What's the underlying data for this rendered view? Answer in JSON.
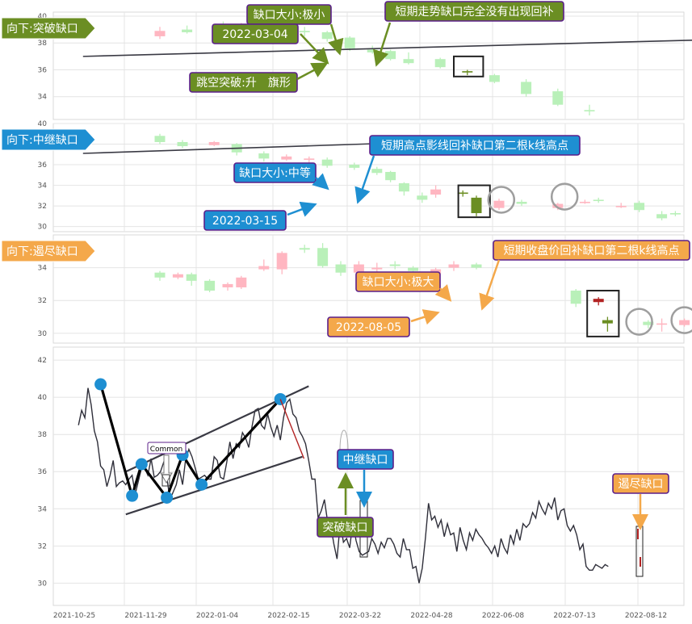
{
  "colors": {
    "up_fill": "#ffb6c1",
    "up_dark": "#b22222",
    "down_fill": "#b9f0b9",
    "down_dark": "#6b8e23",
    "green_box": "#6b8e23",
    "blue_box": "#1e8fd2",
    "orange_box": "#f4a84a",
    "box_border": "#5b1f8a",
    "price_line": "#2f2f3a",
    "pivot": "#1e8fd2"
  },
  "chart_data": [
    {
      "type": "candlestick",
      "panel": "breakaway",
      "tag": "向下:突破缺口",
      "yticks": [
        34,
        36,
        38,
        40
      ],
      "ylim": [
        32.3,
        40.3
      ],
      "candles": [
        {
          "x": 20,
          "o": 38.5,
          "c": 38.9,
          "h": 39.2,
          "l": 38.3
        },
        {
          "x": 26,
          "o": 39.0,
          "c": 38.8,
          "h": 39.3,
          "l": 38.7
        },
        {
          "x": 34,
          "o": 39.3,
          "c": 39.1,
          "h": 39.6,
          "l": 38.9
        },
        {
          "x": 38,
          "o": 39.1,
          "c": 39.4,
          "h": 39.5,
          "l": 39.0
        },
        {
          "x": 42,
          "o": 39.3,
          "c": 38.6,
          "h": 39.4,
          "l": 38.5
        },
        {
          "x": 47,
          "o": 38.5,
          "c": 39.0,
          "h": 39.2,
          "l": 38.4
        },
        {
          "x": 52,
          "o": 38.9,
          "c": 38.8,
          "h": 39.2,
          "l": 38.5
        },
        {
          "x": 57,
          "o": 38.8,
          "c": 38.3,
          "h": 38.9,
          "l": 38.1
        },
        {
          "x": 62,
          "o": 38.4,
          "c": 37.6,
          "h": 38.5,
          "l": 37.4
        },
        {
          "x": 67,
          "o": 37.5,
          "c": 37.3,
          "h": 37.8,
          "l": 37.2
        },
        {
          "x": 71,
          "o": 37.4,
          "c": 36.8,
          "h": 37.5,
          "l": 36.7
        },
        {
          "x": 75,
          "o": 36.8,
          "c": 36.5,
          "h": 37.3,
          "l": 36.4
        },
        {
          "x": 82,
          "o": 36.8,
          "c": 36.2,
          "h": 36.9,
          "l": 36.1
        },
        {
          "x": 88,
          "o": 35.9,
          "c": 35.8,
          "h": 36.0,
          "l": 35.6
        },
        {
          "x": 94,
          "o": 35.6,
          "c": 35.1,
          "h": 35.7,
          "l": 35.0
        },
        {
          "x": 101,
          "o": 35.1,
          "c": 34.2,
          "h": 35.3,
          "l": 34.0
        },
        {
          "x": 108,
          "o": 34.4,
          "c": 33.4,
          "h": 34.6,
          "l": 33.3
        },
        {
          "x": 115,
          "o": 33.0,
          "c": 32.9,
          "h": 33.4,
          "l": 32.6
        }
      ],
      "gap_box": {
        "x0": 85,
        "x1": 91.5,
        "y0": 35.5,
        "y1": 37.0
      },
      "trendline": {
        "x0": 3,
        "y0": 37.0,
        "x1": 148,
        "y1": 38.3
      },
      "annotations": [
        "缺口大小:极小",
        "短期走势缺口完全没有出现回补",
        "2022-03-04",
        "跳空突破:升　旗形"
      ]
    },
    {
      "type": "candlestick",
      "panel": "runaway",
      "tag": "向下:中继缺口",
      "yticks": [
        30,
        32,
        34,
        36,
        38,
        40
      ],
      "ylim": [
        29.5,
        40.0
      ],
      "candles": [
        {
          "x": 20,
          "o": 38.8,
          "c": 38.2,
          "h": 39.0,
          "l": 38.0
        },
        {
          "x": 25,
          "o": 38.2,
          "c": 37.8,
          "h": 38.4,
          "l": 37.6
        },
        {
          "x": 32,
          "o": 37.9,
          "c": 38.2,
          "h": 38.3,
          "l": 37.8
        },
        {
          "x": 37,
          "o": 38.0,
          "c": 37.2,
          "h": 38.1,
          "l": 36.9
        },
        {
          "x": 43,
          "o": 37.1,
          "c": 36.6,
          "h": 37.3,
          "l": 36.3
        },
        {
          "x": 48,
          "o": 36.5,
          "c": 36.8,
          "h": 37.0,
          "l": 36.4
        },
        {
          "x": 53,
          "o": 36.6,
          "c": 36.6,
          "h": 36.8,
          "l": 36.2
        },
        {
          "x": 57,
          "o": 36.5,
          "c": 35.9,
          "h": 36.7,
          "l": 35.7
        },
        {
          "x": 63,
          "o": 36.0,
          "c": 35.7,
          "h": 36.2,
          "l": 35.5
        },
        {
          "x": 68,
          "o": 35.6,
          "c": 35.2,
          "h": 35.8,
          "l": 35.0
        },
        {
          "x": 71,
          "o": 35.3,
          "c": 34.5,
          "h": 35.4,
          "l": 34.3
        },
        {
          "x": 74,
          "o": 34.2,
          "c": 33.4,
          "h": 34.3,
          "l": 33.0
        },
        {
          "x": 78,
          "o": 33.0,
          "c": 32.6,
          "h": 33.3,
          "l": 32.3
        },
        {
          "x": 81,
          "o": 33.1,
          "c": 33.6,
          "h": 34.0,
          "l": 32.8
        },
        {
          "x": 87,
          "o": 33.3,
          "c": 33.2,
          "h": 33.5,
          "l": 32.9
        },
        {
          "x": 90,
          "o": 32.8,
          "c": 31.3,
          "h": 33.0,
          "l": 31.0
        },
        {
          "x": 95,
          "o": 31.8,
          "c": 32.5,
          "h": 32.7,
          "l": 31.6
        },
        {
          "x": 100,
          "o": 32.4,
          "c": 32.2,
          "h": 32.6,
          "l": 32.0
        },
        {
          "x": 108,
          "o": 31.8,
          "c": 32.2,
          "h": 32.3,
          "l": 31.6
        },
        {
          "x": 114,
          "o": 32.4,
          "c": 32.4,
          "h": 32.6,
          "l": 32.2
        },
        {
          "x": 117,
          "o": 32.6,
          "c": 32.5,
          "h": 32.8,
          "l": 32.3
        },
        {
          "x": 122,
          "o": 32.0,
          "c": 32.0,
          "h": 32.3,
          "l": 31.8
        },
        {
          "x": 126,
          "o": 32.3,
          "c": 31.6,
          "h": 32.5,
          "l": 31.4
        },
        {
          "x": 131,
          "o": 31.2,
          "c": 30.8,
          "h": 31.5,
          "l": 30.6
        },
        {
          "x": 134,
          "o": 31.3,
          "c": 31.2,
          "h": 31.5,
          "l": 31.0
        },
        {
          "x": 139,
          "o": 31.4,
          "c": 31.8,
          "h": 32.0,
          "l": 31.3
        },
        {
          "x": 142,
          "o": 31.9,
          "c": 32.3,
          "h": 32.5,
          "l": 31.8
        },
        {
          "x": 146,
          "o": 32.1,
          "c": 32.9,
          "h": 33.0,
          "l": 31.8
        }
      ],
      "gap_box": {
        "x0": 86,
        "x1": 93,
        "y0": 30.9,
        "y1": 34.0
      },
      "circles": [
        {
          "x": 95.5,
          "y": 32.6
        },
        {
          "x": 109.5,
          "y": 32.9
        }
      ],
      "trendline": {
        "x0": 3,
        "y0": 37.1,
        "x1": 92,
        "y1": 38.4
      },
      "annotations": [
        "短期高点影线回补缺口第二根k线高点",
        "缺口大小:中等",
        "2022-03-15"
      ]
    },
    {
      "type": "candlestick",
      "panel": "exhaustion",
      "tag": "向下:遏尽缺口",
      "yticks": [
        30,
        32,
        34
      ],
      "ylim": [
        29.4,
        36.0
      ],
      "candles": [
        {
          "x": 20,
          "o": 33.7,
          "c": 33.4,
          "h": 33.8,
          "l": 33.2
        },
        {
          "x": 24,
          "o": 33.4,
          "c": 33.6,
          "h": 33.7,
          "l": 33.3
        },
        {
          "x": 27,
          "o": 33.6,
          "c": 33.2,
          "h": 33.7,
          "l": 32.9
        },
        {
          "x": 31,
          "o": 33.2,
          "c": 32.6,
          "h": 33.3,
          "l": 32.5
        },
        {
          "x": 35,
          "o": 32.8,
          "c": 33.0,
          "h": 33.1,
          "l": 32.6
        },
        {
          "x": 38,
          "o": 32.8,
          "c": 33.4,
          "h": 33.5,
          "l": 32.7
        },
        {
          "x": 43,
          "o": 33.9,
          "c": 34.1,
          "h": 34.5,
          "l": 33.8
        },
        {
          "x": 47,
          "o": 33.9,
          "c": 34.9,
          "h": 35.0,
          "l": 33.6
        },
        {
          "x": 52,
          "o": 35.2,
          "c": 35.1,
          "h": 35.4,
          "l": 34.9
        },
        {
          "x": 56,
          "o": 35.2,
          "c": 34.1,
          "h": 35.5,
          "l": 34.0
        },
        {
          "x": 60,
          "o": 34.2,
          "c": 33.7,
          "h": 34.4,
          "l": 33.5
        },
        {
          "x": 64,
          "o": 33.7,
          "c": 34.2,
          "h": 34.4,
          "l": 32.9
        },
        {
          "x": 68,
          "o": 33.9,
          "c": 34.0,
          "h": 34.3,
          "l": 33.6
        },
        {
          "x": 72,
          "o": 34.2,
          "c": 34.1,
          "h": 34.4,
          "l": 33.9
        },
        {
          "x": 76,
          "o": 34.0,
          "c": 33.8,
          "h": 34.1,
          "l": 33.6
        },
        {
          "x": 81,
          "o": 33.6,
          "c": 33.9,
          "h": 34.0,
          "l": 33.4
        },
        {
          "x": 85,
          "o": 34.0,
          "c": 34.2,
          "h": 34.4,
          "l": 33.8
        },
        {
          "x": 90,
          "o": 34.2,
          "c": 34.0,
          "h": 34.3,
          "l": 33.9
        },
        {
          "x": 112,
          "o": 32.6,
          "c": 31.8,
          "h": 32.7,
          "l": 31.6
        },
        {
          "x": 117,
          "o": 31.9,
          "c": 32.1,
          "h": 32.2,
          "l": 31.7
        },
        {
          "x": 119,
          "o": 30.8,
          "c": 30.6,
          "h": 31.0,
          "l": 30.1
        },
        {
          "x": 128,
          "o": 30.7,
          "c": 30.5,
          "h": 30.8,
          "l": 30.3
        },
        {
          "x": 131,
          "o": 30.6,
          "c": 30.6,
          "h": 30.9,
          "l": 30.1
        },
        {
          "x": 136,
          "o": 30.5,
          "c": 30.8,
          "h": 30.9,
          "l": 30.4
        },
        {
          "x": 140,
          "o": 30.8,
          "c": 30.8,
          "h": 31.0,
          "l": 30.6
        }
      ],
      "gap_box": {
        "x0": 114.5,
        "x1": 121.5,
        "y0": 29.8,
        "y1": 32.6
      },
      "circles": [
        {
          "x": 126,
          "y": 30.7
        },
        {
          "x": 136,
          "y": 30.8
        }
      ],
      "annotations": [
        "短期收盘价回补缺口第二根k线高点",
        "缺口大小:极大",
        "2022-08-05"
      ]
    },
    {
      "type": "line",
      "panel": "overview",
      "yticks": [
        30,
        32,
        34,
        36,
        38,
        40,
        42
      ],
      "ylim": [
        28.8,
        42.7
      ],
      "xticks": [
        "2021-10-25",
        "2021-11-29",
        "2022-01-04",
        "2022-02-15",
        "2022-03-22",
        "2022-04-28",
        "2022-06-08",
        "2022-07-13",
        "2022-08-12"
      ],
      "x_range": [
        -8,
        192
      ],
      "close": [
        38.5,
        39.3,
        38.9,
        40.5,
        39.6,
        38.2,
        37.6,
        36.3,
        36.1,
        35.2,
        35.8,
        36.6,
        35.2,
        35.4,
        35.5,
        35.3,
        35.6,
        35.8,
        34.8,
        35.5,
        36.2,
        36.2,
        35.8,
        36.7,
        35.7,
        35.8,
        36.0,
        36.5,
        35.7,
        34.5,
        34.9,
        35.3,
        36.1,
        35.3,
        36.7,
        37.2,
        36.8,
        36.2,
        35.6,
        35.7,
        35.8,
        35.6,
        35.6,
        36.8,
        36.6,
        35.7,
        35.6,
        36.5,
        37.6,
        36.7,
        37.5,
        37.3,
        38.1,
        37.8,
        37.3,
        38.4,
        39.3,
        39.4,
        38.5,
        38.3,
        39.1,
        38.4,
        37.9,
        38.5,
        37.7,
        38.9,
        39.7,
        39.9,
        39.1,
        38.9,
        38.2,
        37.9,
        37.5,
        36.6,
        35.6,
        35.6,
        33.5,
        33.9,
        34.5,
        33.3,
        33.1,
        32.1,
        31.3,
        33.3,
        32.2,
        32.4,
        31.9,
        33.3,
        32.3,
        31.7,
        31.5,
        31.6,
        31.7,
        32.4,
        32.1,
        31.6,
        32.2,
        31.9,
        32.4,
        32.4,
        32.1,
        31.6,
        31.4,
        32.4,
        31.8,
        31.8,
        30.8,
        30.9,
        30.0,
        30.8,
        32.4,
        34.3,
        33.4,
        33.6,
        33.0,
        33.4,
        32.5,
        33.2,
        32.6,
        32.7,
        31.7,
        33.0,
        32.3,
        31.8,
        32.7,
        32.3,
        32.9,
        32.6,
        32.4,
        32.1,
        31.9,
        31.6,
        32.0,
        31.4,
        32.4,
        31.9,
        31.6,
        32.6,
        32.1,
        32.9,
        32.3,
        33.2,
        33.0,
        33.2,
        33.8,
        33.5,
        34.4,
        34.0,
        33.7,
        34.3,
        34.0,
        34.6,
        33.4,
        33.9,
        34.0,
        33.1,
        32.8,
        33.1,
        32.6,
        31.8,
        32.1,
        30.9,
        30.7,
        30.7,
        31.0,
        30.9,
        30.8,
        31.0,
        30.9
      ],
      "pivots": [
        {
          "x": 7,
          "y": 40.7
        },
        {
          "x": 17,
          "y": 34.7
        },
        {
          "x": 20,
          "y": 36.4
        },
        {
          "x": 28,
          "y": 34.6
        },
        {
          "x": 33,
          "y": 36.9
        },
        {
          "x": 39,
          "y": 35.3
        },
        {
          "x": 64,
          "y": 39.9
        }
      ],
      "zigzag": [
        {
          "x": 7,
          "y": 40.7
        },
        {
          "x": 17,
          "y": 34.7
        },
        {
          "x": 20,
          "y": 36.4
        },
        {
          "x": 28,
          "y": 34.6
        },
        {
          "x": 33,
          "y": 36.9
        },
        {
          "x": 39,
          "y": 35.3
        },
        {
          "x": 64,
          "y": 39.9
        }
      ],
      "channel": [
        {
          "x0": 15,
          "y0": 33.7,
          "x1": 71,
          "y1": 36.8
        },
        {
          "x0": 15,
          "y0": 36.0,
          "x1": 73,
          "y1": 40.6
        }
      ],
      "annotations": [
        "Common",
        "中继缺口",
        "突破缺口",
        "遏尽缺口"
      ]
    }
  ],
  "annotations": {
    "p1_tag": "向下:突破缺口",
    "p1_gap_size": "缺口大小:极小",
    "p1_note": "短期走势缺口完全没有出现回补",
    "p1_date": "2022-03-04",
    "p1_pattern": "跳空突破:升　旗形",
    "p2_tag": "向下:中继缺口",
    "p2_note": "短期高点影线回补缺口第二根k线高点",
    "p2_gap_size": "缺口大小:中等",
    "p2_date": "2022-03-15",
    "p3_tag": "向下:遏尽缺口",
    "p3_note": "短期收盘价回补缺口第二根k线高点",
    "p3_gap_size": "缺口大小:极大",
    "p3_date": "2022-08-05",
    "p4_common": "Common",
    "p4_runaway": "中继缺口",
    "p4_breakaway": "突破缺口",
    "p4_exhaustion": "遏尽缺口"
  }
}
